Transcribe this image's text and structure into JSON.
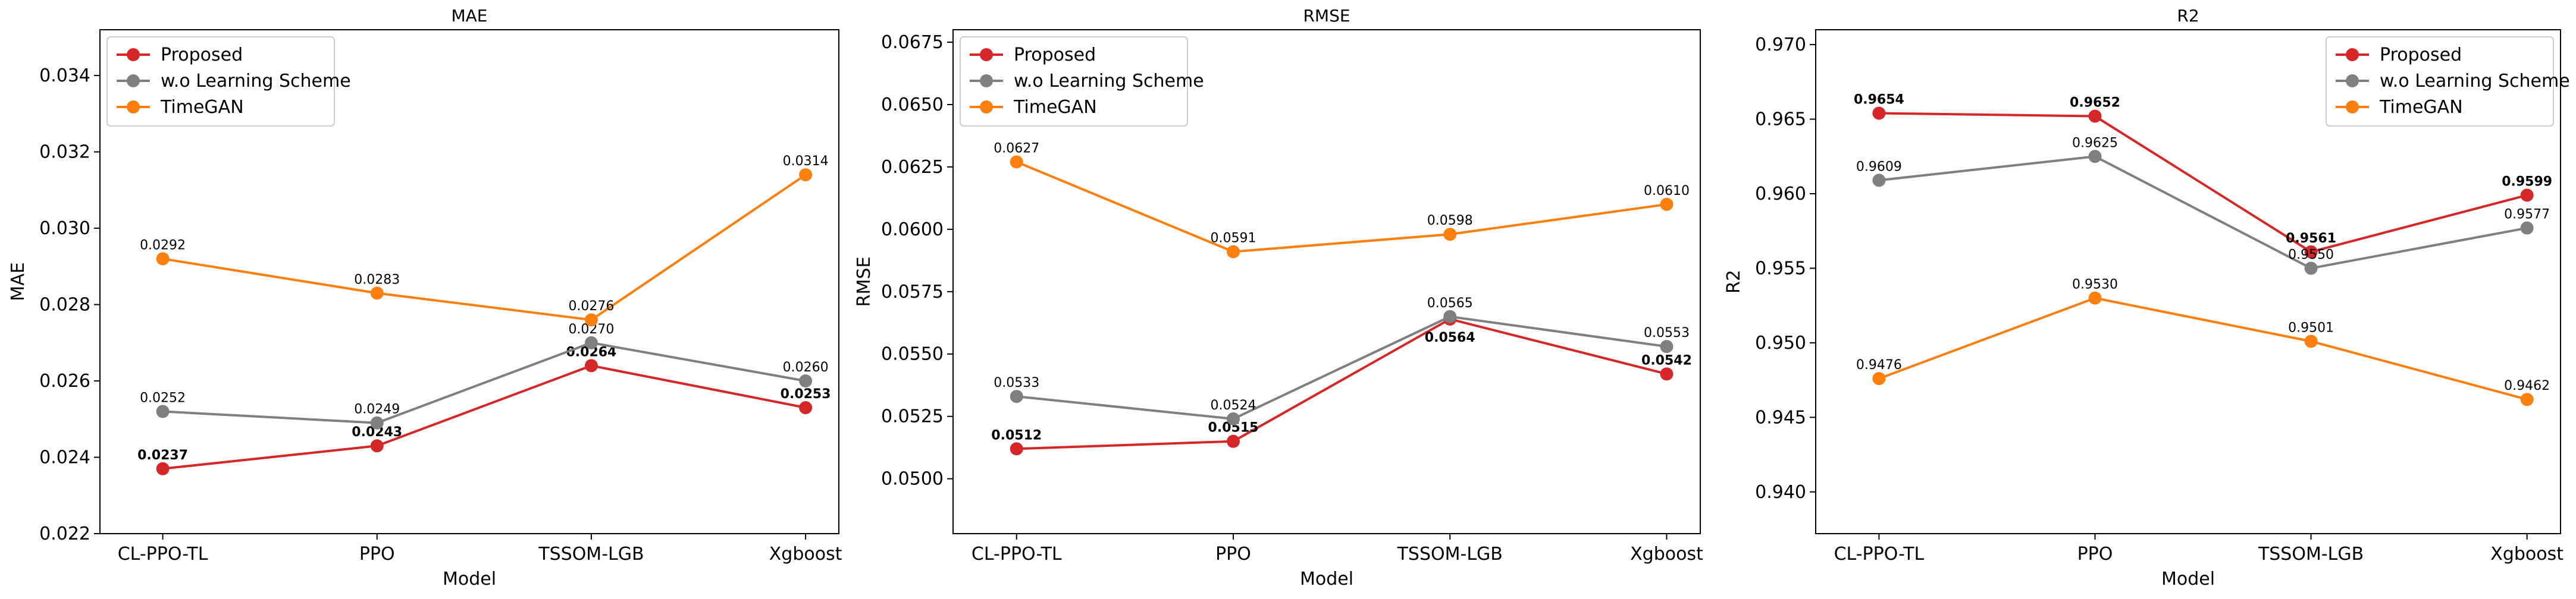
{
  "chart_data": [
    {
      "type": "line",
      "title": "MAE",
      "xlabel": "Model",
      "ylabel": "MAE",
      "categories": [
        "CL-PPO-TL",
        "PPO",
        "TSSOM-LGB",
        "Xgboost"
      ],
      "ylim": [
        0.022,
        0.0352
      ],
      "yticks": [
        0.022,
        0.024,
        0.026,
        0.028,
        0.03,
        0.032,
        0.034
      ],
      "ytick_labels": [
        "0.022",
        "0.024",
        "0.026",
        "0.028",
        "0.030",
        "0.032",
        "0.034"
      ],
      "decimals": 4,
      "legend": "top-left",
      "series": [
        {
          "name": "Proposed",
          "color": "#d62728",
          "bold": true,
          "values": [
            0.0237,
            0.0243,
            0.0264,
            0.0253
          ],
          "labels": [
            "0.0237",
            "0.0243",
            "0.0264",
            "0.0253"
          ],
          "label_pos": [
            "above",
            "above",
            "above",
            "above"
          ]
        },
        {
          "name": "w.o Learning Scheme",
          "color": "#7f7f7f",
          "bold": false,
          "values": [
            0.0252,
            0.0249,
            0.027,
            0.026
          ],
          "labels": [
            "0.0252",
            "0.0249",
            "0.0270",
            "0.0260"
          ],
          "label_pos": [
            "above",
            "above",
            "above",
            "above"
          ]
        },
        {
          "name": "TimeGAN",
          "color": "#ff7f0e",
          "bold": false,
          "values": [
            0.0292,
            0.0283,
            0.0276,
            0.0314
          ],
          "labels": [
            "0.0292",
            "0.0283",
            "0.0276",
            "0.0314"
          ],
          "label_pos": [
            "above",
            "above",
            "above",
            "above"
          ]
        }
      ]
    },
    {
      "type": "line",
      "title": "RMSE",
      "xlabel": "Model",
      "ylabel": "RMSE",
      "categories": [
        "CL-PPO-TL",
        "PPO",
        "TSSOM-LGB",
        "Xgboost"
      ],
      "ylim": [
        0.0478,
        0.068
      ],
      "yticks": [
        0.05,
        0.0525,
        0.055,
        0.0575,
        0.06,
        0.0625,
        0.065,
        0.0675
      ],
      "ytick_labels": [
        "0.0500",
        "0.0525",
        "0.0550",
        "0.0575",
        "0.0600",
        "0.0625",
        "0.0650",
        "0.0675"
      ],
      "decimals": 4,
      "legend": "top-left",
      "series": [
        {
          "name": "Proposed",
          "color": "#d62728",
          "bold": true,
          "values": [
            0.0512,
            0.0515,
            0.0564,
            0.0542
          ],
          "labels": [
            "0.0512",
            "0.0515",
            "0.0564",
            "0.0542"
          ],
          "label_pos": [
            "above",
            "above",
            "below",
            "above"
          ]
        },
        {
          "name": "w.o Learning Scheme",
          "color": "#7f7f7f",
          "bold": false,
          "values": [
            0.0533,
            0.0524,
            0.0565,
            0.0553
          ],
          "labels": [
            "0.0533",
            "0.0524",
            "0.0565",
            "0.0553"
          ],
          "label_pos": [
            "above",
            "above",
            "above",
            "above"
          ]
        },
        {
          "name": "TimeGAN",
          "color": "#ff7f0e",
          "bold": false,
          "values": [
            0.0627,
            0.0591,
            0.0598,
            0.061
          ],
          "labels": [
            "0.0627",
            "0.0591",
            "0.0598",
            "0.0610"
          ],
          "label_pos": [
            "above",
            "above",
            "above",
            "above"
          ]
        }
      ]
    },
    {
      "type": "line",
      "title": "R2",
      "xlabel": "Model",
      "ylabel": "R2",
      "categories": [
        "CL-PPO-TL",
        "PPO",
        "TSSOM-LGB",
        "Xgboost"
      ],
      "ylim": [
        0.9372,
        0.971
      ],
      "yticks": [
        0.94,
        0.945,
        0.95,
        0.955,
        0.96,
        0.965,
        0.97
      ],
      "ytick_labels": [
        "0.940",
        "0.945",
        "0.950",
        "0.955",
        "0.960",
        "0.965",
        "0.970"
      ],
      "decimals": 4,
      "legend": "top-right",
      "series": [
        {
          "name": "Proposed",
          "color": "#d62728",
          "bold": true,
          "values": [
            0.9654,
            0.9652,
            0.9561,
            0.9599
          ],
          "labels": [
            "0.9654",
            "0.9652",
            "0.9561",
            "0.9599"
          ],
          "label_pos": [
            "above",
            "above",
            "above",
            "above"
          ]
        },
        {
          "name": "w.o Learning Scheme",
          "color": "#7f7f7f",
          "bold": false,
          "values": [
            0.9609,
            0.9625,
            0.955,
            0.9577
          ],
          "labels": [
            "0.9609",
            "0.9625",
            "0.9550",
            "0.9577"
          ],
          "label_pos": [
            "above",
            "above",
            "above",
            "above"
          ]
        },
        {
          "name": "TimeGAN",
          "color": "#ff7f0e",
          "bold": false,
          "values": [
            0.9476,
            0.953,
            0.9501,
            0.9462
          ],
          "labels": [
            "0.9476",
            "0.9530",
            "0.9501",
            "0.9462"
          ],
          "label_pos": [
            "above",
            "above",
            "above",
            "above"
          ]
        }
      ]
    }
  ]
}
